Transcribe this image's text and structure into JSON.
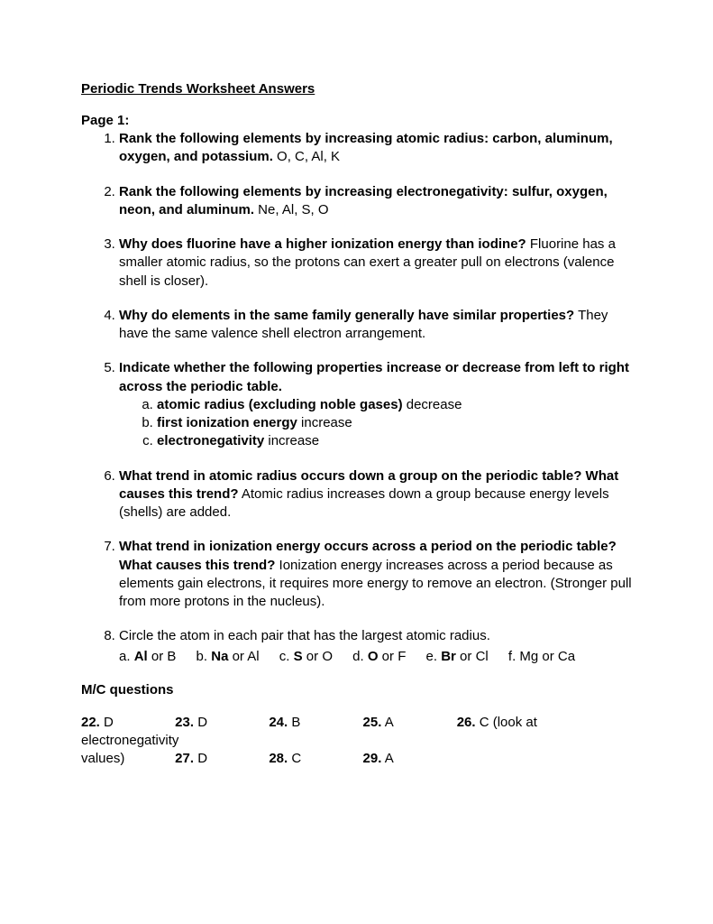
{
  "title": "Periodic Trends Worksheet Answers",
  "page_header": "Page 1:",
  "questions": [
    {
      "q": "Rank the following elements by increasing atomic radius: carbon, aluminum, oxygen, and potassium.",
      "a": " O, C, Al, K"
    },
    {
      "q": "Rank the following elements by increasing electronegativity: sulfur, oxygen, neon, and aluminum.",
      "a": " Ne, Al, S, O"
    },
    {
      "q": "Why does fluorine have a higher ionization energy than iodine?",
      "a": " Fluorine has a smaller atomic radius, so the protons can exert a greater pull on electrons (valence shell is closer)."
    },
    {
      "q": "Why do elements in the same family generally have similar properties?",
      "a": " They have the same valence shell electron arrangement."
    },
    {
      "q": "Indicate whether the following properties increase or decrease from left to right across the periodic table.",
      "subs": [
        {
          "label": "atomic radius (excluding noble gases)",
          "ans": " decrease"
        },
        {
          "label": "first ionization energy",
          "ans": " increase"
        },
        {
          "label": "electronegativity",
          "ans": " increase"
        }
      ]
    },
    {
      "q": "What trend in atomic radius occurs down a group on the periodic table? What causes this trend?",
      "a": " Atomic radius increases down a group because energy levels (shells) are added."
    },
    {
      "q": "What trend in ionization energy occurs across a period on the periodic table? What causes this trend?",
      "a": " Ionization energy increases across a period because as elements gain electrons, it requires more energy to remove an electron. (Stronger pull from more protons in the nucleus)."
    },
    {
      "q_plain": "Circle the atom in each pair that has the largest atomic radius.",
      "pairs": [
        {
          "key": "a.",
          "b1": "Al",
          "mid": " or B"
        },
        {
          "key": "b.",
          "b1": "Na",
          "mid": " or Al"
        },
        {
          "key": "c.",
          "b1": "S",
          "mid": " or O"
        },
        {
          "key": "d.",
          "b1": "O",
          "mid": " or F"
        },
        {
          "key": "e.",
          "b1": "Br",
          "mid": " or Cl"
        },
        {
          "key": "f.",
          "plain": " Mg or Ca"
        }
      ]
    }
  ],
  "mc_header": "M/C questions",
  "mc": {
    "r1": [
      {
        "n": "22.",
        "a": " D"
      },
      {
        "n": "23.",
        "a": " D"
      },
      {
        "n": "24.",
        "a": " B"
      },
      {
        "n": "25.",
        "a": " A"
      },
      {
        "n": "26.",
        "a": " C  (look at electronegativity"
      }
    ],
    "r2_prefix": "values)",
    "r2": [
      {
        "n": "27.",
        "a": " D"
      },
      {
        "n": "28.",
        "a": " C"
      },
      {
        "n": "29.",
        "a": " A"
      }
    ]
  }
}
